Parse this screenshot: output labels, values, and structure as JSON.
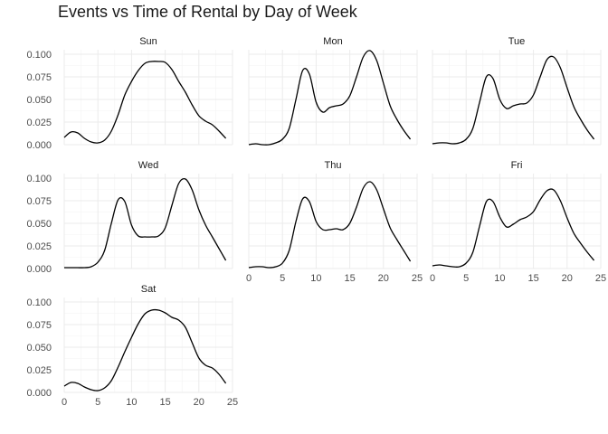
{
  "title": "Events vs Time of Rental by Day of Week",
  "colors": {
    "line": "#000000",
    "grid": "#ebebeb",
    "background": "#ffffff"
  },
  "chart_data": {
    "type": "line",
    "facets": "wrap",
    "ncol": 3,
    "xlim": [
      0,
      25
    ],
    "ylim": [
      0,
      0.105
    ],
    "x_ticks": [
      0,
      5,
      10,
      15,
      20,
      25
    ],
    "y_ticks": [
      "0.000",
      "0.025",
      "0.050",
      "0.075",
      "0.100"
    ],
    "y_tick_values": [
      0,
      0.025,
      0.05,
      0.075,
      0.1
    ],
    "grid": true,
    "panels": [
      {
        "name": "Sun",
        "x": [
          0,
          1,
          2,
          3,
          4,
          5,
          6,
          7,
          8,
          9,
          10,
          11,
          12,
          13,
          14,
          15,
          16,
          17,
          18,
          19,
          20,
          21,
          22,
          23,
          24
        ],
        "y": [
          0.008,
          0.014,
          0.013,
          0.007,
          0.003,
          0.002,
          0.005,
          0.015,
          0.033,
          0.055,
          0.07,
          0.082,
          0.09,
          0.092,
          0.092,
          0.091,
          0.083,
          0.07,
          0.058,
          0.044,
          0.032,
          0.026,
          0.022,
          0.015,
          0.007
        ]
      },
      {
        "name": "Mon",
        "x": [
          0,
          1,
          2,
          3,
          4,
          5,
          6,
          7,
          8,
          9,
          10,
          11,
          12,
          13,
          14,
          15,
          16,
          17,
          18,
          19,
          20,
          21,
          22,
          23,
          24
        ],
        "y": [
          0.0,
          0.001,
          0.0,
          0.0,
          0.002,
          0.006,
          0.018,
          0.05,
          0.082,
          0.078,
          0.047,
          0.036,
          0.041,
          0.043,
          0.045,
          0.054,
          0.075,
          0.097,
          0.104,
          0.093,
          0.068,
          0.043,
          0.028,
          0.016,
          0.006
        ]
      },
      {
        "name": "Tue",
        "x": [
          0,
          1,
          2,
          3,
          4,
          5,
          6,
          7,
          8,
          9,
          10,
          11,
          12,
          13,
          14,
          15,
          16,
          17,
          18,
          19,
          20,
          21,
          22,
          23,
          24
        ],
        "y": [
          0.001,
          0.002,
          0.002,
          0.001,
          0.002,
          0.006,
          0.018,
          0.047,
          0.075,
          0.073,
          0.05,
          0.04,
          0.043,
          0.045,
          0.046,
          0.055,
          0.075,
          0.094,
          0.097,
          0.085,
          0.063,
          0.042,
          0.028,
          0.016,
          0.006
        ]
      },
      {
        "name": "Wed",
        "x": [
          0,
          1,
          2,
          3,
          4,
          5,
          6,
          7,
          8,
          9,
          10,
          11,
          12,
          13,
          14,
          15,
          16,
          17,
          18,
          19,
          20,
          21,
          22,
          23,
          24
        ],
        "y": [
          0.001,
          0.001,
          0.001,
          0.001,
          0.002,
          0.007,
          0.02,
          0.05,
          0.076,
          0.074,
          0.048,
          0.036,
          0.035,
          0.035,
          0.036,
          0.045,
          0.07,
          0.094,
          0.099,
          0.087,
          0.065,
          0.048,
          0.035,
          0.022,
          0.009
        ]
      },
      {
        "name": "Thu",
        "x": [
          0,
          1,
          2,
          3,
          4,
          5,
          6,
          7,
          8,
          9,
          10,
          11,
          12,
          13,
          14,
          15,
          16,
          17,
          18,
          19,
          20,
          21,
          22,
          23,
          24
        ],
        "y": [
          0.001,
          0.002,
          0.002,
          0.001,
          0.002,
          0.006,
          0.02,
          0.052,
          0.077,
          0.074,
          0.052,
          0.043,
          0.043,
          0.044,
          0.043,
          0.05,
          0.068,
          0.089,
          0.096,
          0.087,
          0.066,
          0.045,
          0.032,
          0.02,
          0.008
        ]
      },
      {
        "name": "Fri",
        "x": [
          0,
          1,
          2,
          3,
          4,
          5,
          6,
          7,
          8,
          9,
          10,
          11,
          12,
          13,
          14,
          15,
          16,
          17,
          18,
          19,
          20,
          21,
          22,
          23,
          24
        ],
        "y": [
          0.003,
          0.004,
          0.003,
          0.002,
          0.002,
          0.006,
          0.018,
          0.047,
          0.074,
          0.074,
          0.057,
          0.046,
          0.049,
          0.054,
          0.057,
          0.063,
          0.076,
          0.086,
          0.087,
          0.075,
          0.056,
          0.039,
          0.028,
          0.018,
          0.009
        ]
      },
      {
        "name": "Sat",
        "x": [
          0,
          1,
          2,
          3,
          4,
          5,
          6,
          7,
          8,
          9,
          10,
          11,
          12,
          13,
          14,
          15,
          16,
          17,
          18,
          19,
          20,
          21,
          22,
          23,
          24
        ],
        "y": [
          0.007,
          0.011,
          0.01,
          0.006,
          0.003,
          0.002,
          0.005,
          0.013,
          0.028,
          0.045,
          0.061,
          0.076,
          0.087,
          0.091,
          0.091,
          0.088,
          0.083,
          0.08,
          0.072,
          0.055,
          0.038,
          0.03,
          0.027,
          0.02,
          0.01
        ]
      }
    ]
  }
}
